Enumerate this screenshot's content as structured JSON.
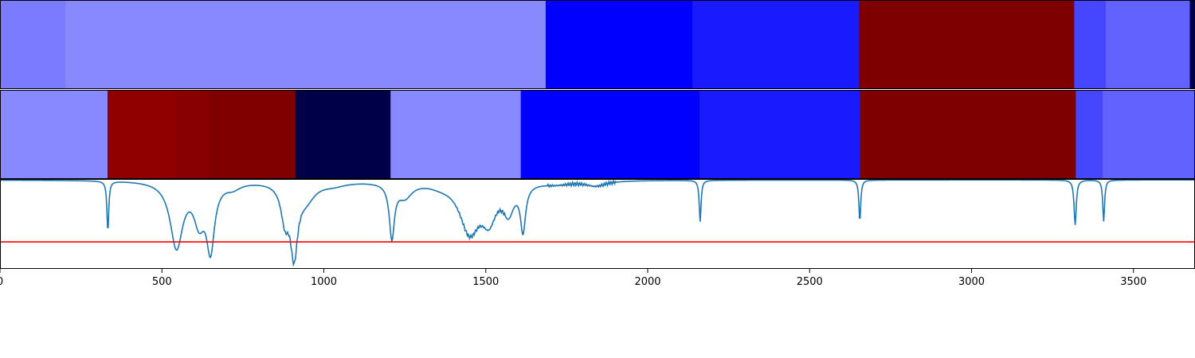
{
  "chart_data": {
    "type": "heatmap+line",
    "x_axis": {
      "xlim": [
        0,
        3690
      ],
      "ticks": [
        0,
        500,
        1000,
        1500,
        2000,
        2500,
        3000,
        3500
      ],
      "tick_labels": [
        "0",
        "500",
        "1000",
        "1500",
        "2000",
        "2500",
        "3000",
        "3500"
      ]
    },
    "band_tracks": [
      {
        "segments": [
          {
            "x0": 0,
            "x1": 202,
            "color": "#7b7bff"
          },
          {
            "x0": 202,
            "x1": 1685,
            "color": "#8888ff"
          },
          {
            "x0": 1685,
            "x1": 2138,
            "color": "#0000ff"
          },
          {
            "x0": 2138,
            "x1": 2653,
            "color": "#1a1aff"
          },
          {
            "x0": 2653,
            "x1": 3317,
            "color": "#7f0000"
          },
          {
            "x0": 3317,
            "x1": 3415,
            "color": "#4646ff"
          },
          {
            "x0": 3415,
            "x1": 3674,
            "color": "#6262ff"
          },
          {
            "x0": 3674,
            "x1": 3690,
            "color": "#000050"
          }
        ]
      },
      {
        "segments": [
          {
            "x0": 0,
            "x1": 332,
            "color": "#8888ff"
          },
          {
            "x0": 332,
            "x1": 540,
            "color": "#900000"
          },
          {
            "x0": 540,
            "x1": 645,
            "color": "#880000"
          },
          {
            "x0": 645,
            "x1": 912,
            "color": "#800000"
          },
          {
            "x0": 912,
            "x1": 1206,
            "color": "#000048"
          },
          {
            "x0": 1206,
            "x1": 1608,
            "color": "#8888ff"
          },
          {
            "x0": 1608,
            "x1": 2160,
            "color": "#0000ff"
          },
          {
            "x0": 2160,
            "x1": 2656,
            "color": "#1a1aff"
          },
          {
            "x0": 2656,
            "x1": 3322,
            "color": "#7f0000"
          },
          {
            "x0": 3322,
            "x1": 3405,
            "color": "#4646ff"
          },
          {
            "x0": 3405,
            "x1": 3690,
            "color": "#6262ff"
          }
        ]
      }
    ],
    "line": {
      "color": "#1f77b4",
      "ylim": [
        0,
        1
      ],
      "baseline": 0.99,
      "dips": [
        {
          "center": 333,
          "depth": 0.56,
          "width": 5
        },
        {
          "center": 545,
          "depth": 0.73,
          "width": 35
        },
        {
          "center": 615,
          "depth": 0.4,
          "width": 30
        },
        {
          "center": 650,
          "depth": 0.71,
          "width": 22
        },
        {
          "center": 720,
          "depth": 0.06,
          "width": 40
        },
        {
          "center": 880,
          "depth": 0.38,
          "width": 22
        },
        {
          "center": 908,
          "depth": 0.75,
          "width": 20
        },
        {
          "center": 945,
          "depth": 0.18,
          "width": 50
        },
        {
          "center": 1030,
          "depth": 0.04,
          "width": 70
        },
        {
          "center": 1210,
          "depth": 0.6,
          "width": 14
        },
        {
          "center": 1250,
          "depth": 0.16,
          "width": 40
        },
        {
          "center": 1360,
          "depth": 0.03,
          "width": 60
        },
        {
          "center": 1450,
          "depth": 0.55,
          "width": 55
        },
        {
          "center": 1510,
          "depth": 0.36,
          "width": 40
        },
        {
          "center": 1570,
          "depth": 0.3,
          "width": 30
        },
        {
          "center": 1615,
          "depth": 0.5,
          "width": 14
        },
        {
          "center": 1720,
          "depth": 0.03,
          "width": 80
        },
        {
          "center": 1840,
          "depth": 0.055,
          "width": 55
        },
        {
          "center": 2162,
          "depth": 0.46,
          "width": 5
        },
        {
          "center": 2655,
          "depth": 0.46,
          "width": 5
        },
        {
          "center": 3320,
          "depth": 0.5,
          "width": 6
        },
        {
          "center": 3408,
          "depth": 0.46,
          "width": 5
        }
      ],
      "jagged_ranges": [
        [
          860,
          930
        ],
        [
          1400,
          1560
        ],
        [
          1690,
          1900
        ]
      ]
    },
    "threshold": {
      "y": 0.3,
      "color": "#ff0000"
    }
  }
}
